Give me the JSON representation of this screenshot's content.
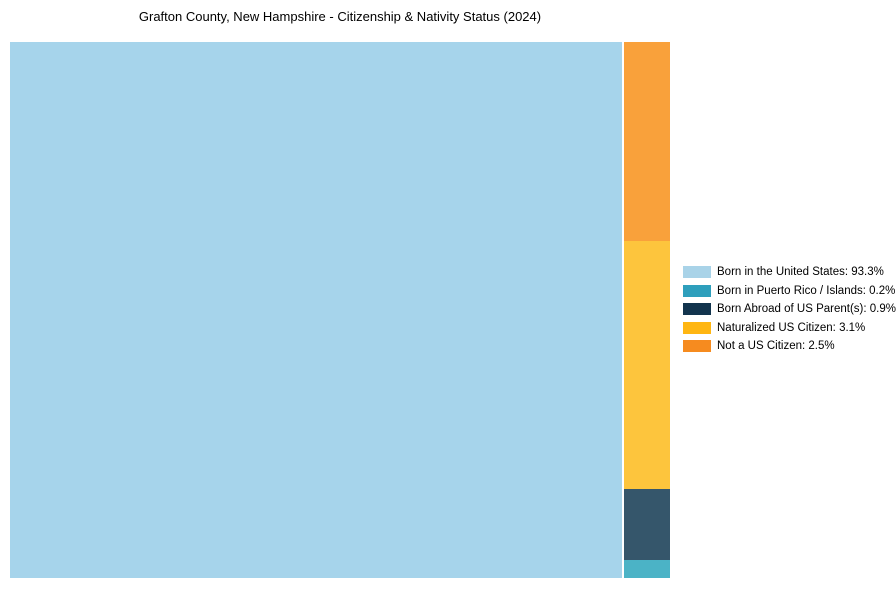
{
  "title": "Grafton County, New Hampshire - Citizenship & Nativity Status (2024)",
  "chart_data": {
    "type": "treemap",
    "title": "Grafton County, New Hampshire - Citizenship & Nativity Status (2024)",
    "unit": "%",
    "total": 100,
    "legend_position": "right-center",
    "items": [
      {
        "label": "Born in the United States",
        "value_pct": 93.3,
        "legend_label": "Born in the United States: 93.3%",
        "legend_color": "#A9D3E8",
        "fill": "#A6D4EB"
      },
      {
        "label": "Born in Puerto Rico / Islands",
        "value_pct": 0.2,
        "legend_label": "Born in Puerto Rico / Islands: 0.2%",
        "legend_color": "#2E9FBC",
        "fill": "#4BB3C6"
      },
      {
        "label": "Born Abroad of US Parent(s)",
        "value_pct": 0.9,
        "legend_label": "Born Abroad of US Parent(s): 0.9%",
        "legend_color": "#12344D",
        "fill": "#35566B"
      },
      {
        "label": "Naturalized US Citizen",
        "value_pct": 3.1,
        "legend_label": "Naturalized US Citizen: 3.1%",
        "legend_color": "#FFB612",
        "fill": "#FDC53D"
      },
      {
        "label": "Not a US Citizen",
        "value_pct": 2.5,
        "legend_label": "Not a US Citizen: 2.5%",
        "legend_color": "#F68B1F",
        "fill": "#F9A13B"
      }
    ]
  }
}
